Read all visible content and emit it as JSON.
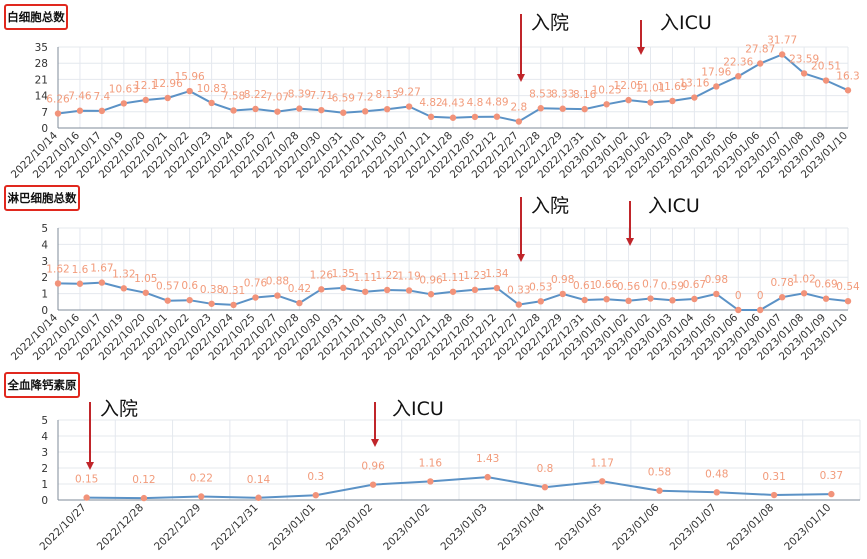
{
  "chart_data": [
    {
      "type": "line",
      "title": "白细胞总数",
      "ylim": [
        0,
        35
      ],
      "yticks": [
        0,
        7,
        14,
        21,
        28,
        35
      ],
      "grid": true,
      "categories": [
        "2022/10/14",
        "2022/10/16",
        "2022/10/17",
        "2022/10/19",
        "2022/10/20",
        "2022/10/21",
        "2022/10/22",
        "2022/10/23",
        "2022/10/24",
        "2022/10/25",
        "2022/10/27",
        "2022/10/28",
        "2022/10/30",
        "2022/10/31",
        "2022/11/01",
        "2022/11/03",
        "2022/11/07",
        "2022/11/21",
        "2022/11/28",
        "2022/12/05",
        "2022/12/12",
        "2022/12/27",
        "2022/12/28",
        "2022/12/29",
        "2022/12/31",
        "2023/01/01",
        "2023/01/02",
        "2023/01/02",
        "2023/01/03",
        "2023/01/04",
        "2023/01/05",
        "2023/01/06",
        "2023/01/06",
        "2023/01/07",
        "2023/01/08",
        "2023/01/09",
        "2023/01/10"
      ],
      "values": [
        6.26,
        7.46,
        7.4,
        10.63,
        12.1,
        12.96,
        15.96,
        10.83,
        7.58,
        8.22,
        7.07,
        8.39,
        7.71,
        6.59,
        7.2,
        8.13,
        9.27,
        4.82,
        4.43,
        4.8,
        4.89,
        2.8,
        8.53,
        8.33,
        8.16,
        10.25,
        12.05,
        11.01,
        11.69,
        13.16,
        17.96,
        22.36,
        27.87,
        31.77,
        23.59,
        20.51,
        16.3
      ],
      "labels": [
        "6.26",
        "7.46",
        "7.4",
        "10.63",
        "12.1",
        "12.96",
        "15.96",
        "10.83",
        "7.58",
        "8.22",
        "7.07",
        "8.39",
        "7.71",
        "6.59",
        "7.2",
        "8.13",
        "9.27",
        "4.82",
        "4.43",
        "4.8",
        "4.89",
        "2.8",
        "8.53",
        "8.33",
        "8.16",
        "10.25",
        "12.05",
        "11.01",
        "11.69",
        "13.16",
        "17.96",
        "22.36",
        "27.87",
        "31.77",
        "23.59",
        "20.51",
        "16.3"
      ],
      "annotations": [
        {
          "text": "入院",
          "index": 21
        },
        {
          "text": "入ICU",
          "index": 26
        }
      ]
    },
    {
      "type": "line",
      "title": "淋巴细胞总数",
      "ylim": [
        0,
        5
      ],
      "yticks": [
        0,
        1,
        2,
        3,
        4,
        5
      ],
      "grid": true,
      "categories": [
        "2022/10/14",
        "2022/10/16",
        "2022/10/17",
        "2022/10/19",
        "2022/10/20",
        "2022/10/21",
        "2022/10/22",
        "2022/10/23",
        "2022/10/24",
        "2022/10/25",
        "2022/10/27",
        "2022/10/28",
        "2022/10/30",
        "2022/10/31",
        "2022/11/01",
        "2022/11/03",
        "2022/11/07",
        "2022/11/21",
        "2022/11/28",
        "2022/12/05",
        "2022/12/12",
        "2022/12/27",
        "2022/12/28",
        "2022/12/29",
        "2022/12/31",
        "2023/01/01",
        "2023/01/02",
        "2023/01/02",
        "2023/01/03",
        "2023/01/04",
        "2023/01/05",
        "2023/01/06",
        "2023/01/06",
        "2023/01/07",
        "2023/01/08",
        "2023/01/09",
        "2023/01/10"
      ],
      "values": [
        1.62,
        1.6,
        1.67,
        1.32,
        1.05,
        0.57,
        0.6,
        0.38,
        0.31,
        0.76,
        0.88,
        0.42,
        1.26,
        1.35,
        1.11,
        1.22,
        1.19,
        0.96,
        1.11,
        1.23,
        1.34,
        0.33,
        0.53,
        0.98,
        0.61,
        0.66,
        0.56,
        0.7,
        0.59,
        0.67,
        0.98,
        0,
        0,
        0.78,
        1.02,
        0.69,
        0.54
      ],
      "labels": [
        "1.62",
        "1.6",
        "1.67",
        "1.32",
        "1.05",
        "0.57",
        "0.6",
        "0.38",
        "0.31",
        "0.76",
        "0.88",
        "0.42",
        "1.26",
        "1.35",
        "1.11",
        "1.22",
        "1.19",
        "0.96",
        "1.11",
        "1.23",
        "1.34",
        "0.33",
        "0.53",
        "0.98",
        "0.61",
        "0.66",
        "0.56",
        "0.7",
        "0.59",
        "0.67",
        "0.98",
        "0",
        "0",
        "0.78",
        "1.02",
        "0.69",
        "0.54"
      ],
      "annotations": [
        {
          "text": "入院",
          "index": 21
        },
        {
          "text": "入ICU",
          "index": 26
        }
      ]
    },
    {
      "type": "line",
      "title": "全血降钙素原",
      "ylim": [
        0,
        5
      ],
      "yticks": [
        0,
        1,
        2,
        3,
        4,
        5
      ],
      "grid": true,
      "categories": [
        "2022/10/27",
        "2022/12/28",
        "2022/12/29",
        "2022/12/31",
        "2023/01/01",
        "2023/01/02",
        "2023/01/02",
        "2023/01/03",
        "2023/01/04",
        "2023/01/05",
        "2023/01/06",
        "2023/01/07",
        "2023/01/08",
        "2023/01/10"
      ],
      "values": [
        0.15,
        0.12,
        0.22,
        0.14,
        0.3,
        0.96,
        1.16,
        1.43,
        0.8,
        1.17,
        0.58,
        0.48,
        0.31,
        0.37
      ],
      "labels": [
        "0.15",
        "0.12",
        "0.22",
        "0.14",
        "0.3",
        "0.96",
        "1.16",
        "1.43",
        "0.8",
        "1.17",
        "0.58",
        "0.48",
        "0.31",
        "0.37"
      ],
      "annotations": [
        {
          "text": "入院",
          "index": 0
        },
        {
          "text": "入ICU",
          "index": 5
        }
      ]
    }
  ]
}
